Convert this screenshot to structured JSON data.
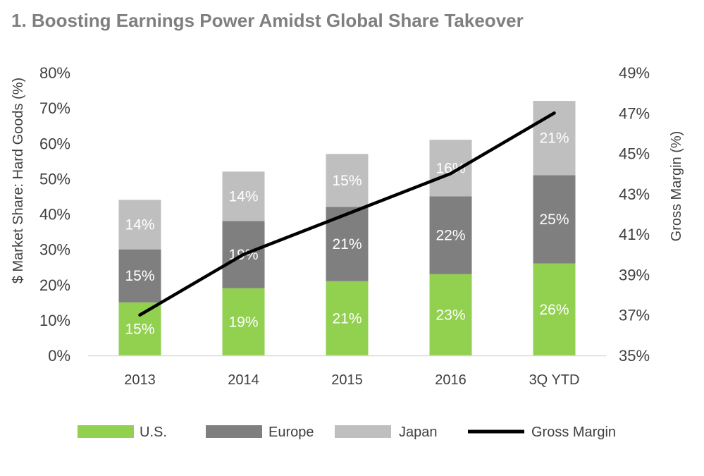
{
  "chart_data": {
    "type": "bar",
    "stacked": true,
    "title": "1. Boosting Earnings Power Amidst Global Share Takeover",
    "categories": [
      "2013",
      "2014",
      "2015",
      "2016",
      "3Q YTD"
    ],
    "series": [
      {
        "name": "U.S.",
        "values": [
          15,
          19,
          21,
          23,
          26
        ],
        "labels": [
          "15%",
          "19%",
          "21%",
          "23%",
          "26%"
        ],
        "color": "#92d050"
      },
      {
        "name": "Europe",
        "values": [
          15,
          19,
          21,
          22,
          25
        ],
        "labels": [
          "15%",
          "19%",
          "21%",
          "22%",
          "25%"
        ],
        "color": "#7f7f7f"
      },
      {
        "name": "Japan",
        "values": [
          14,
          14,
          15,
          16,
          21
        ],
        "labels": [
          "14%",
          "14%",
          "15%",
          "16%",
          "21%"
        ],
        "color": "#bfbfbf"
      }
    ],
    "line_series": {
      "name": "Gross Margin",
      "values": [
        37.0,
        40.0,
        42.0,
        44.0,
        47.0
      ],
      "color": "#000000"
    },
    "ylabel": "$ Market Share: Hard Goods (%)",
    "y2label": "Gross Margin (%)",
    "ylim": [
      0,
      80
    ],
    "y2lim": [
      35,
      49
    ],
    "yticks": [
      "0%",
      "10%",
      "20%",
      "30%",
      "40%",
      "50%",
      "60%",
      "70%",
      "80%"
    ],
    "y2ticks": [
      "35%",
      "37%",
      "39%",
      "41%",
      "43%",
      "45%",
      "47%",
      "49%"
    ],
    "legend_position": "bottom",
    "grid": false
  }
}
